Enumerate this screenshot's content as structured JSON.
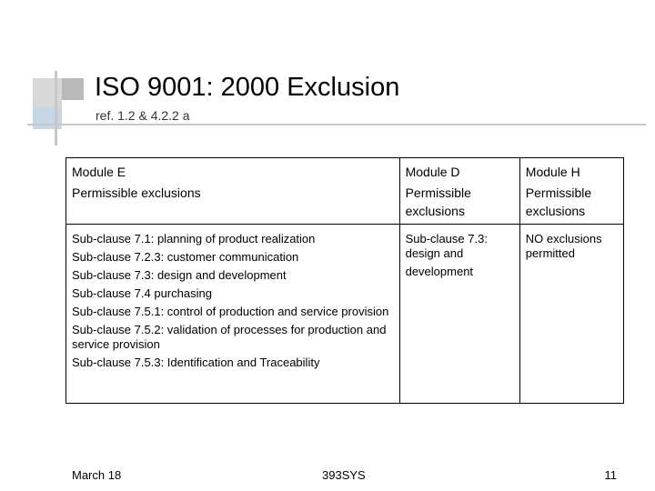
{
  "slide": {
    "title": "ISO 9001: 2000 Exclusion",
    "subtitle": "ref. 1.2 & 4.2.2 a"
  },
  "table": {
    "columns": [
      {
        "module": "Module E",
        "heading": "Permissible exclusions"
      },
      {
        "module": "Module D",
        "heading": "Permissible exclusions"
      },
      {
        "module": "Module H",
        "heading": "Permissible exclusions"
      }
    ],
    "module_e_clauses": [
      "Sub-clause 7.1: planning of product realization",
      "Sub-clause 7.2.3: customer communication",
      "Sub-clause 7.3: design and development",
      "Sub-clause 7.4 purchasing",
      "Sub-clause 7.5.1: control of production and service provision",
      "Sub-clause 7.5.2: validation of processes for production and service provision",
      "Sub-clause 7.5.3: Identification and Traceability"
    ],
    "module_d_lines": [
      "Sub-clause 7.3: design and",
      "development"
    ],
    "module_h_text": "NO exclusions permitted"
  },
  "footer": {
    "date": "March 18",
    "course": "393SYS",
    "page": "11"
  }
}
